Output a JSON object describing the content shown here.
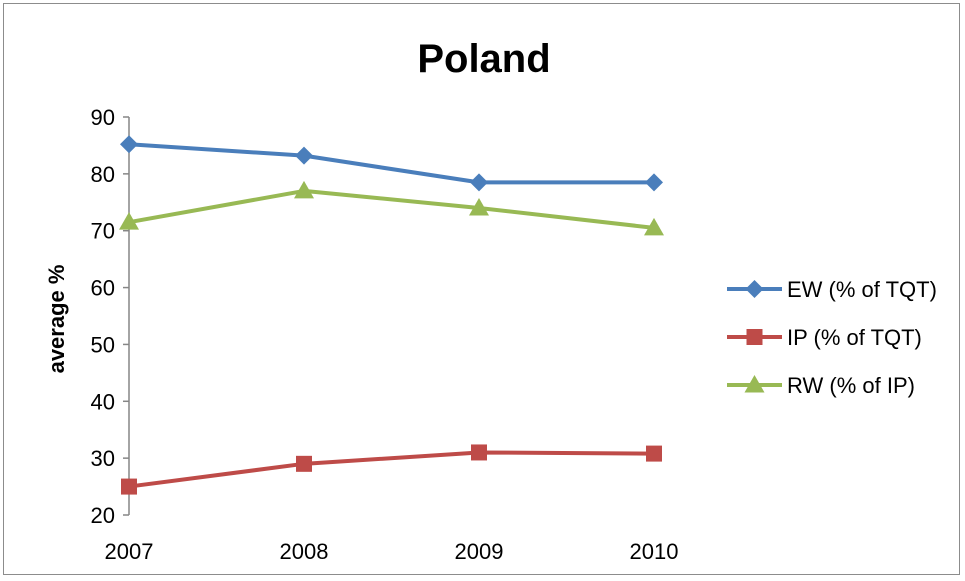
{
  "chart_data": {
    "type": "line",
    "title": "Poland",
    "xlabel": "",
    "ylabel": "average %",
    "categories": [
      "2007",
      "2008",
      "2009",
      "2010"
    ],
    "ylim": [
      20,
      90
    ],
    "yticks": [
      20,
      30,
      40,
      50,
      60,
      70,
      80,
      90
    ],
    "grid": false,
    "legend_position": "right",
    "series": [
      {
        "name": "EW (% of TQT)",
        "values": [
          85.2,
          83.2,
          78.5,
          78.5
        ],
        "color": "#4a7ebb",
        "marker": "diamond"
      },
      {
        "name": "IP (% of TQT)",
        "values": [
          25.0,
          29.0,
          31.0,
          30.8
        ],
        "color": "#be4b48",
        "marker": "square"
      },
      {
        "name": "RW (% of IP)",
        "values": [
          71.5,
          77.0,
          74.0,
          70.5
        ],
        "color": "#98b954",
        "marker": "triangle"
      }
    ]
  }
}
